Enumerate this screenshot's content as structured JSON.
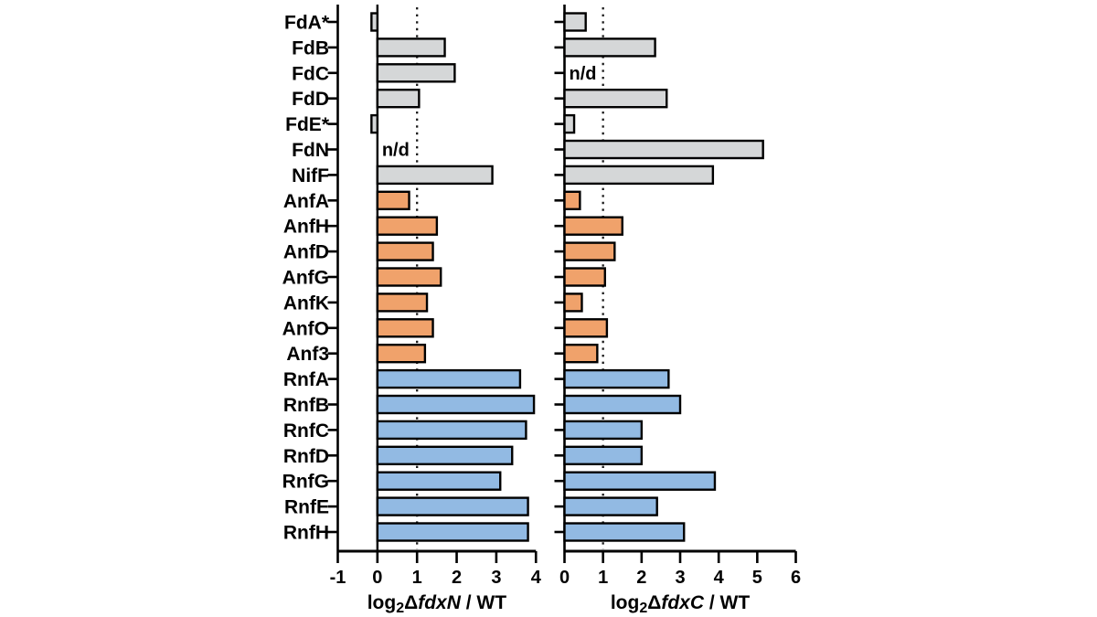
{
  "figure": {
    "description": "Two-panel horizontal bar chart of log2 expression ratios versus WT",
    "nd_label": "n/d"
  },
  "chart_data": {
    "type": "bar",
    "orientation": "horizontal",
    "categories": [
      "FdA*",
      "FdB",
      "FdC",
      "FdD",
      "FdE*",
      "FdN",
      "NifF",
      "AnfA",
      "AnfH",
      "AnfD",
      "AnfG",
      "AnfK",
      "AnfO",
      "Anf3",
      "RnfA",
      "RnfB",
      "RnfC",
      "RnfD",
      "RnfG",
      "RnfE",
      "RnfH"
    ],
    "groups": [
      "fd",
      "fd",
      "fd",
      "fd",
      "fd",
      "fd",
      "fd",
      "anf",
      "anf",
      "anf",
      "anf",
      "anf",
      "anf",
      "anf",
      "rnf",
      "rnf",
      "rnf",
      "rnf",
      "rnf",
      "rnf",
      "rnf"
    ],
    "group_colors": {
      "fd": "#d5d7d8",
      "anf": "#f0a26b",
      "rnf": "#92bae3"
    },
    "bar_outline_color": "#000000",
    "dotted_line_color": "#1a1a1a",
    "nd_text": "n/d",
    "legend": "none",
    "grid": "off",
    "panels": [
      {
        "id": "fdxN",
        "title_parts": {
          "prefix": "log",
          "sub": "2",
          "delta": "Δ",
          "gene": "fdxN",
          "suffix": " / WT"
        },
        "xlabel_plain": "log2 ΔfdxN / WT",
        "xlim": [
          -1,
          4
        ],
        "xticks": [
          -1,
          0,
          1,
          2,
          3,
          4
        ],
        "dotted_x": 1,
        "values": [
          -0.15,
          1.7,
          1.95,
          1.05,
          -0.15,
          null,
          2.9,
          0.8,
          1.5,
          1.4,
          1.6,
          1.25,
          1.4,
          1.2,
          3.6,
          3.95,
          3.75,
          3.4,
          3.1,
          3.8,
          3.8
        ],
        "nd_category": "FdN"
      },
      {
        "id": "fdxC",
        "title_parts": {
          "prefix": "log",
          "sub": "2",
          "delta": "Δ",
          "gene": "fdxC",
          "suffix": " / WT"
        },
        "xlabel_plain": "log2 ΔfdxC / WT",
        "xlim": [
          0,
          6
        ],
        "xticks": [
          0,
          1,
          2,
          3,
          4,
          5,
          6
        ],
        "dotted_x": 1,
        "values": [
          0.55,
          2.35,
          null,
          2.65,
          0.25,
          5.15,
          3.85,
          0.4,
          1.5,
          1.3,
          1.05,
          0.45,
          1.1,
          0.85,
          2.7,
          3.0,
          2.0,
          2.0,
          3.9,
          2.4,
          3.1
        ],
        "nd_category": "FdC"
      }
    ]
  }
}
